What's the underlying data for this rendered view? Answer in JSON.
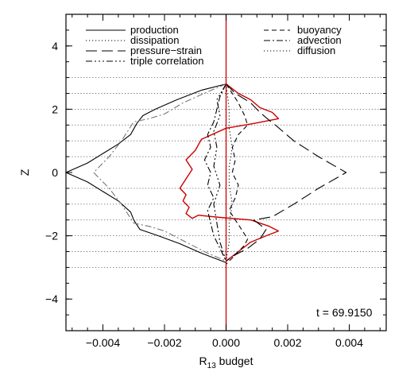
{
  "chart_data": {
    "type": "line",
    "title": "",
    "xlabel": "R",
    "xlabel_sub": "13",
    "xlabel_rest": " budget",
    "ylabel": "Z",
    "xlim": [
      -0.0052,
      0.0052
    ],
    "ylim": [
      -5,
      5
    ],
    "xticks": [
      -0.004,
      -0.002,
      0.0,
      0.002,
      0.004
    ],
    "xtick_labels": [
      "−0.004",
      "−0.002",
      "0.000",
      "0.002",
      "0.004"
    ],
    "yticks": [
      -4,
      -2,
      0,
      2,
      4
    ],
    "ytick_labels": [
      "−4",
      "−2",
      "0",
      "2",
      "4"
    ],
    "hgrid": [
      -3,
      -2.5,
      -2,
      -1.5,
      -1,
      -0.5,
      0.5,
      1,
      1.5,
      2,
      2.5,
      3
    ],
    "vline_x": 0,
    "vline_color": "#cc0000",
    "annotation": "t = 69.9150",
    "legend": [
      {
        "name": "production",
        "dash": "solid",
        "column": "left"
      },
      {
        "name": "dissipation",
        "dash": "dotted",
        "column": "left"
      },
      {
        "name": "pressure−strain",
        "dash": "longdash",
        "column": "left"
      },
      {
        "name": "triple correlation",
        "dash": "dashdotdotdot",
        "column": "left"
      },
      {
        "name": "buoyancy",
        "dash": "dashed",
        "column": "right"
      },
      {
        "name": "advection",
        "dash": "dashdot",
        "column": "right"
      },
      {
        "name": "diffusion",
        "dash": "dotted",
        "column": "right"
      }
    ],
    "series": [
      {
        "name": "production",
        "color": "#000000",
        "dash": "solid",
        "x": [
          0.0,
          -0.0008,
          -0.0016,
          -0.0023,
          -0.0027,
          -0.0029,
          -0.0031,
          -0.0035,
          -0.004,
          -0.0045,
          -0.0052,
          -0.0045,
          -0.004,
          -0.0035,
          -0.0031,
          -0.003,
          -0.0028,
          -0.0022,
          -0.0015,
          -0.0008,
          0.0
        ],
        "y": [
          2.8,
          2.6,
          2.3,
          2.0,
          1.8,
          1.55,
          1.2,
          0.9,
          0.6,
          0.3,
          0.0,
          -0.3,
          -0.6,
          -0.9,
          -1.25,
          -1.5,
          -1.8,
          -2.0,
          -2.25,
          -2.55,
          -2.85
        ]
      },
      {
        "name": "diffusion",
        "color": "#777777",
        "dash": "dashdot",
        "x": [
          0.0,
          -0.0006,
          -0.0014,
          -0.002,
          -0.0025,
          -0.003,
          -0.0034,
          -0.0038,
          -0.0043,
          -0.0038,
          -0.0034,
          -0.003,
          -0.0025,
          -0.002,
          -0.0013,
          -0.0006,
          0.0
        ],
        "y": [
          2.8,
          2.55,
          2.2,
          1.85,
          1.7,
          1.6,
          1.0,
          0.5,
          0.0,
          -0.5,
          -1.0,
          -1.6,
          -1.7,
          -1.85,
          -2.2,
          -2.55,
          -2.8
        ]
      },
      {
        "name": "red-line",
        "color": "#cc0000",
        "dash": "solid",
        "x": [
          0.0,
          0.0004,
          0.0008,
          0.0011,
          0.0015,
          0.0017,
          0.0009,
          0.0,
          -0.0008,
          -0.001,
          -0.0013,
          -0.0011,
          -0.0013,
          -0.0015,
          -0.0013,
          -0.0014,
          -0.0012,
          -0.0013,
          -0.0011,
          -0.0009,
          -0.0002,
          0.0008,
          0.0014,
          0.0017,
          0.0013,
          0.0008,
          0.0004,
          0.0
        ],
        "y": [
          2.8,
          2.5,
          2.3,
          2.05,
          1.9,
          1.7,
          1.55,
          1.4,
          1.05,
          0.7,
          0.4,
          0.1,
          -0.2,
          -0.5,
          -0.7,
          -0.9,
          -1.1,
          -1.3,
          -1.45,
          -1.35,
          -1.42,
          -1.5,
          -1.7,
          -1.85,
          -2.0,
          -2.2,
          -2.5,
          -2.8
        ]
      },
      {
        "name": "pressure−strain",
        "color": "#000000",
        "dash": "longdash",
        "x": [
          0.0,
          0.0003,
          0.0008,
          0.0011,
          0.0014,
          0.0016,
          0.0022,
          0.003,
          0.0039,
          0.003,
          0.0022,
          0.0015,
          0.0009,
          0.0013,
          0.0011,
          0.0007,
          0.0003,
          0.0
        ],
        "y": [
          2.8,
          2.5,
          2.2,
          1.9,
          1.65,
          1.5,
          1.0,
          0.5,
          0.0,
          -0.5,
          -1.0,
          -1.4,
          -1.5,
          -1.8,
          -2.1,
          -2.4,
          -2.6,
          -2.8
        ]
      },
      {
        "name": "buoyancy",
        "color": "#000000",
        "dash": "dashed",
        "x": [
          0.0,
          0.0002,
          0.0004,
          0.0006,
          0.0007,
          0.0004,
          0.0002,
          0.0003,
          0.0002,
          0.0004,
          0.0003,
          0.0001,
          0.0003,
          0.0005,
          0.0007,
          0.0006,
          0.0004,
          0.0002,
          0.0
        ],
        "y": [
          2.8,
          2.5,
          2.2,
          1.8,
          1.5,
          1.2,
          0.8,
          0.4,
          0.0,
          -0.4,
          -0.8,
          -1.2,
          -1.5,
          -1.8,
          -2.1,
          -2.3,
          -2.5,
          -2.7,
          -2.9
        ]
      },
      {
        "name": "advection",
        "color": "#000000",
        "dash": "dashdot",
        "x": [
          0.0,
          -0.0002,
          -0.0003,
          -0.0004,
          -0.0006,
          -0.0005,
          -0.0007,
          -0.0005,
          -0.0006,
          -0.0004,
          -0.0006,
          -0.0005,
          -0.0004,
          -0.0002,
          0.0
        ],
        "y": [
          2.8,
          2.4,
          2.0,
          1.6,
          1.2,
          0.8,
          0.4,
          0.0,
          -0.4,
          -0.8,
          -1.2,
          -1.6,
          -2.0,
          -2.4,
          -2.8
        ]
      },
      {
        "name": "dissipation",
        "color": "#000000",
        "dash": "dotted",
        "x": [
          0.0,
          0.0001,
          0.0001,
          0.0002,
          0.0001,
          0.0001,
          0.0002,
          0.0001,
          0.0001,
          0.0
        ],
        "y": [
          2.8,
          2.0,
          1.4,
          0.8,
          0.2,
          -0.4,
          -1.0,
          -1.6,
          -2.2,
          -2.8
        ]
      },
      {
        "name": "triple correlation",
        "color": "#000000",
        "dash": "dashdotdotdot",
        "x": [
          0.0,
          -0.0003,
          -0.0002,
          -0.0004,
          -0.0003,
          -0.0004,
          -0.0002,
          -0.0004,
          -0.0003,
          -0.0002,
          0.0
        ],
        "y": [
          2.8,
          2.3,
          1.8,
          1.3,
          0.8,
          0.2,
          -0.4,
          -1.0,
          -1.6,
          -2.2,
          -2.8
        ]
      }
    ]
  }
}
